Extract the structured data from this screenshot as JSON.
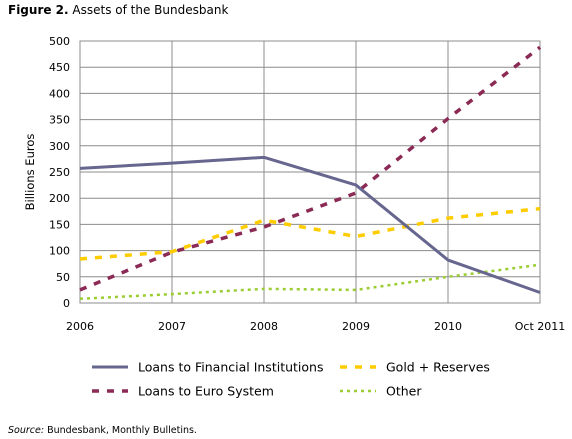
{
  "caption": {
    "label": "Figure 2.",
    "text": "Assets of the Bundesbank"
  },
  "source": {
    "label": "Source:",
    "text": "Bundesbank, Monthly Bulletins."
  },
  "chart_data": {
    "type": "line",
    "title": "",
    "xlabel": "",
    "ylabel": "Billions Euros",
    "categories": [
      "2006",
      "2007",
      "2008",
      "2009",
      "2010",
      "Oct 2011"
    ],
    "ylim": [
      0,
      500
    ],
    "yticks": [
      0,
      50,
      100,
      150,
      200,
      250,
      300,
      350,
      400,
      450,
      500
    ],
    "grid": true,
    "legend_position": "bottom",
    "series": [
      {
        "name": "Loans to Financial Institutions",
        "values": [
          257,
          267,
          278,
          225,
          82,
          20
        ],
        "color": "#66668f",
        "style": "solid"
      },
      {
        "name": "Gold + Reserves",
        "values": [
          84,
          98,
          158,
          127,
          162,
          180
        ],
        "color": "#ffcc00",
        "style": "dashed"
      },
      {
        "name": "Loans to Euro System",
        "values": [
          25,
          97,
          145,
          210,
          352,
          488
        ],
        "color": "#8b2a55",
        "style": "dashed"
      },
      {
        "name": "Other",
        "values": [
          8,
          17,
          27,
          25,
          50,
          73
        ],
        "color": "#9acd32",
        "style": "dotted"
      }
    ]
  }
}
